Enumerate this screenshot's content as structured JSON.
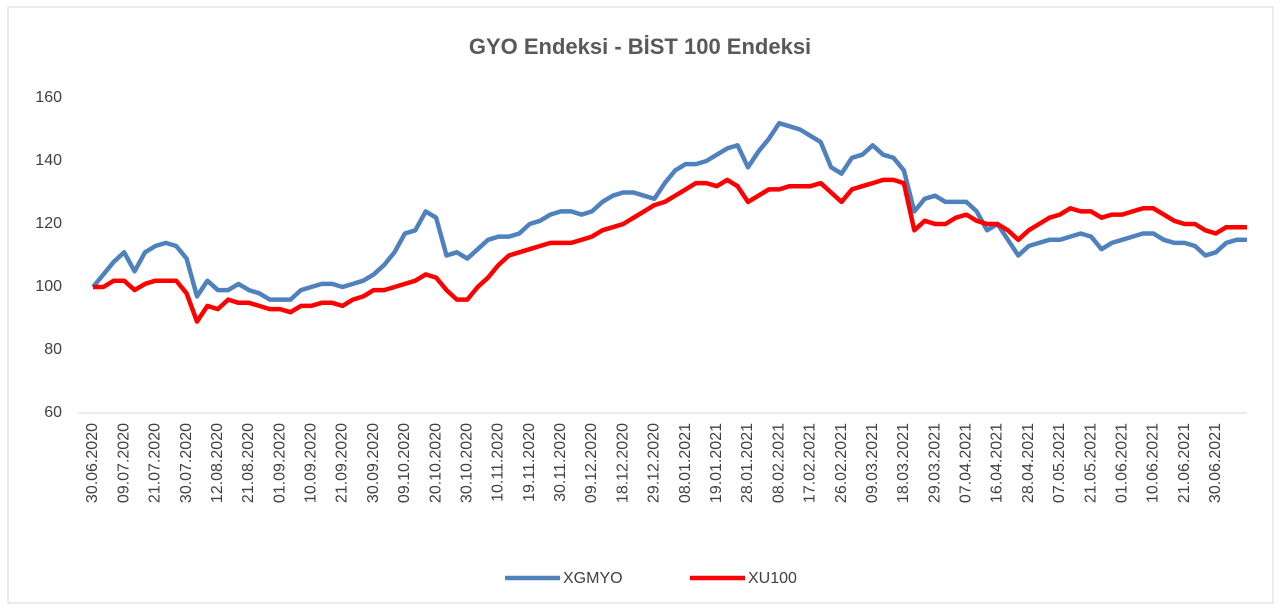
{
  "chart_data": {
    "type": "line",
    "title": "GYO Endeksi - BİST 100 Endeksi",
    "categories": [
      "30.06.2020",
      null,
      null,
      "09.07.2020",
      null,
      null,
      "21.07.2020",
      null,
      null,
      "30.07.2020",
      null,
      null,
      "12.08.2020",
      null,
      null,
      "21.08.2020",
      null,
      null,
      "01.09.2020",
      null,
      null,
      "10.09.2020",
      null,
      null,
      "21.09.2020",
      null,
      null,
      "30.09.2020",
      null,
      null,
      "09.10.2020",
      null,
      null,
      "20.10.2020",
      null,
      null,
      "30.10.2020",
      null,
      null,
      "10.11.2020",
      null,
      null,
      "19.11.2020",
      null,
      null,
      "30.11.2020",
      null,
      null,
      "09.12.2020",
      null,
      null,
      "18.12.2020",
      null,
      null,
      "29.12.2020",
      null,
      null,
      "08.01.2021",
      null,
      null,
      "19.01.2021",
      null,
      null,
      "28.01.2021",
      null,
      null,
      "08.02.2021",
      null,
      null,
      "17.02.2021",
      null,
      null,
      "26.02.2021",
      null,
      null,
      "09.03.2021",
      null,
      null,
      "18.03.2021",
      null,
      null,
      "29.03.2021",
      null,
      null,
      "07.04.2021",
      null,
      null,
      "16.04.2021",
      null,
      null,
      "28.04.2021",
      null,
      null,
      "07.05.2021",
      null,
      null,
      "21.05.2021",
      null,
      null,
      "01.06.2021",
      null,
      null,
      "10.06.2021",
      null,
      null,
      "21.06.2021",
      null,
      null,
      "30.06.2021",
      null,
      null,
      null
    ],
    "series": [
      {
        "name": "XGMYO",
        "color": "#4f81bd",
        "values": [
          100,
          104,
          108,
          111,
          105,
          111,
          113,
          114,
          113,
          109,
          97,
          102,
          99,
          99,
          101,
          99,
          98,
          96,
          96,
          96,
          99,
          100,
          101,
          101,
          100,
          101,
          102,
          104,
          107,
          111,
          117,
          118,
          124,
          122,
          110,
          111,
          109,
          112,
          115,
          116,
          116,
          117,
          120,
          121,
          123,
          124,
          124,
          123,
          124,
          127,
          129,
          130,
          130,
          129,
          128,
          133,
          137,
          139,
          139,
          140,
          142,
          144,
          145,
          138,
          143,
          147,
          152,
          151,
          150,
          148,
          146,
          138,
          136,
          141,
          142,
          145,
          142,
          141,
          137,
          124,
          128,
          129,
          127,
          127,
          127,
          124,
          118,
          120,
          115,
          110,
          113,
          114,
          115,
          115,
          116,
          117,
          116,
          112,
          114,
          115,
          116,
          117,
          117,
          115,
          114,
          114,
          113,
          110,
          111,
          114,
          115,
          115
        ]
      },
      {
        "name": "XU100",
        "color": "#ff0000",
        "values": [
          100,
          100,
          102,
          102,
          99,
          101,
          102,
          102,
          102,
          98,
          89,
          94,
          93,
          96,
          95,
          95,
          94,
          93,
          93,
          92,
          94,
          94,
          95,
          95,
          94,
          96,
          97,
          99,
          99,
          100,
          101,
          102,
          104,
          103,
          99,
          96,
          96,
          100,
          103,
          107,
          110,
          111,
          112,
          113,
          114,
          114,
          114,
          115,
          116,
          118,
          119,
          120,
          122,
          124,
          126,
          127,
          129,
          131,
          133,
          133,
          132,
          134,
          132,
          127,
          129,
          131,
          131,
          132,
          132,
          132,
          133,
          130,
          127,
          131,
          132,
          133,
          134,
          134,
          133,
          118,
          121,
          120,
          120,
          122,
          123,
          121,
          120,
          120,
          118,
          115,
          118,
          120,
          122,
          123,
          125,
          124,
          124,
          122,
          123,
          123,
          124,
          125,
          125,
          123,
          121,
          120,
          120,
          118,
          117,
          119,
          119,
          119
        ]
      }
    ],
    "ylim": [
      60,
      160
    ],
    "yticks": [
      60,
      80,
      100,
      120,
      140,
      160
    ],
    "grid": false,
    "legend": "bottom"
  }
}
